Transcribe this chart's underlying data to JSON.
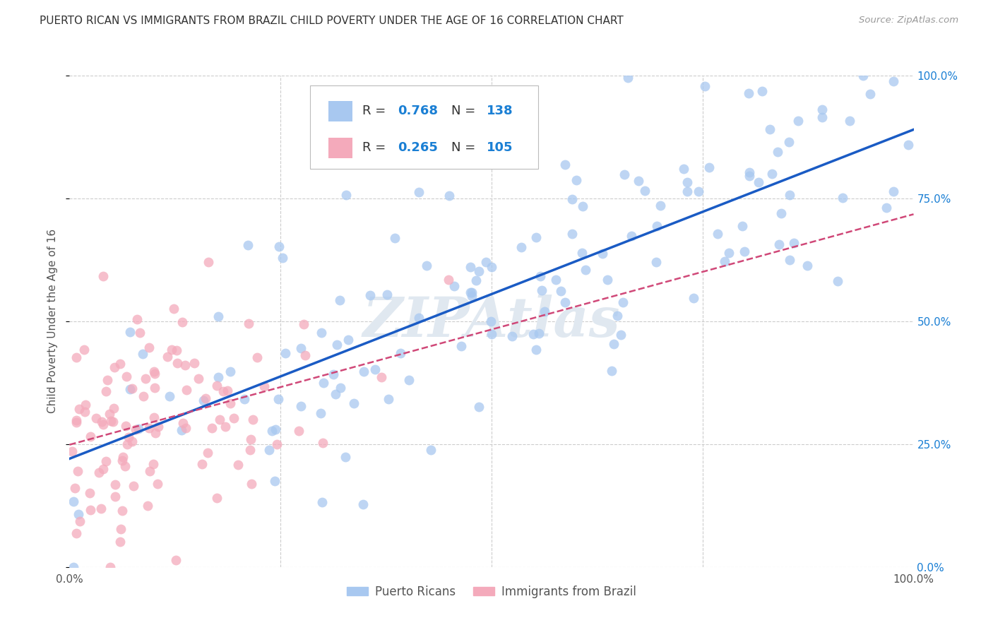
{
  "title": "PUERTO RICAN VS IMMIGRANTS FROM BRAZIL CHILD POVERTY UNDER THE AGE OF 16 CORRELATION CHART",
  "source": "Source: ZipAtlas.com",
  "ylabel": "Child Poverty Under the Age of 16",
  "yticks": [
    "0.0%",
    "25.0%",
    "50.0%",
    "75.0%",
    "100.0%"
  ],
  "ytick_vals": [
    0.0,
    0.25,
    0.5,
    0.75,
    1.0
  ],
  "blue_R": 0.768,
  "blue_N": 138,
  "pink_R": 0.265,
  "pink_N": 105,
  "blue_color": "#a8c8f0",
  "pink_color": "#f4aabb",
  "blue_line_color": "#1a5bc4",
  "pink_line_color": "#d04878",
  "blue_label": "Puerto Ricans",
  "pink_label": "Immigrants from Brazil",
  "watermark": "ZIPAtlas",
  "background_color": "#ffffff",
  "title_fontsize": 11,
  "legend_value_color": "#1a7fd4",
  "legend_label_color": "#333333",
  "right_tick_color": "#1a7fd4",
  "seed_blue": 42,
  "seed_pink": 7
}
